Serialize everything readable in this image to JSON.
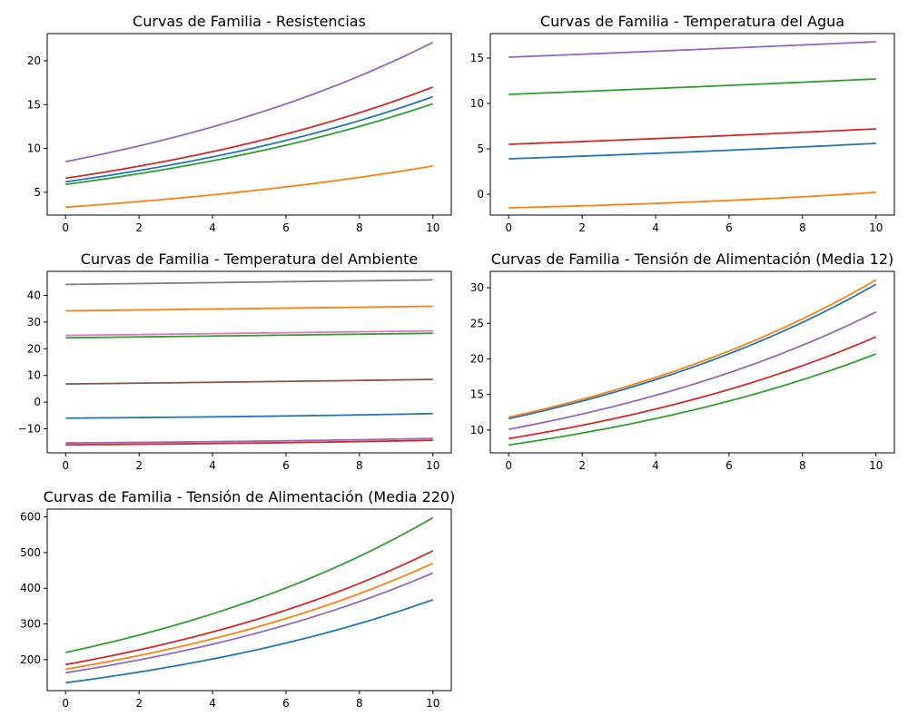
{
  "figure": {
    "background": "#ffffff"
  },
  "chart_data": [
    {
      "type": "line",
      "title": "Curvas de Familia - Resistencias",
      "xlabel": "",
      "ylabel": "",
      "xlim": [
        -0.5,
        10.5
      ],
      "ylim": [
        2.4,
        23.1
      ],
      "xticks": [
        0,
        2,
        4,
        6,
        8,
        10
      ],
      "yticks": [
        5,
        10,
        15,
        20
      ],
      "grid": false,
      "legend": "none",
      "series": [
        {
          "color": "#1f77b4",
          "y0": 6.2,
          "y10": 15.9,
          "curve": "exp"
        },
        {
          "color": "#ff7f0e",
          "y0": 3.3,
          "y10": 8.0,
          "curve": "exp"
        },
        {
          "color": "#2ca02c",
          "y0": 5.9,
          "y10": 15.1,
          "curve": "exp"
        },
        {
          "color": "#d62728",
          "y0": 6.6,
          "y10": 17.0,
          "curve": "exp"
        },
        {
          "color": "#9467bd",
          "y0": 8.5,
          "y10": 22.1,
          "curve": "exp"
        }
      ]
    },
    {
      "type": "line",
      "title": "Curvas de Familia - Temperatura del Agua",
      "xlabel": "",
      "ylabel": "",
      "xlim": [
        -0.5,
        10.5
      ],
      "ylim": [
        -2.3,
        17.7
      ],
      "xticks": [
        0,
        2,
        4,
        6,
        8,
        10
      ],
      "yticks": [
        0,
        5,
        10,
        15
      ],
      "grid": false,
      "legend": "none",
      "series": [
        {
          "color": "#1f77b4",
          "y0": 3.9,
          "y10": 5.6,
          "curve": "exp"
        },
        {
          "color": "#ff7f0e",
          "y0": -1.5,
          "y10": 0.2,
          "curve": "exp"
        },
        {
          "color": "#2ca02c",
          "y0": 11.0,
          "y10": 12.7,
          "curve": "exp"
        },
        {
          "color": "#d62728",
          "y0": 5.5,
          "y10": 7.2,
          "curve": "exp"
        },
        {
          "color": "#9467bd",
          "y0": 15.1,
          "y10": 16.8,
          "curve": "exp"
        }
      ]
    },
    {
      "type": "line",
      "title": "Curvas de Familia - Temperatura del Ambiente",
      "xlabel": "",
      "ylabel": "",
      "xlim": [
        -0.5,
        10.5
      ],
      "ylim": [
        -19,
        49
      ],
      "xticks": [
        0,
        2,
        4,
        6,
        8,
        10
      ],
      "yticks": [
        -10,
        0,
        10,
        20,
        30,
        40
      ],
      "grid": false,
      "legend": "none",
      "series": [
        {
          "color": "#1f77b4",
          "y0": -6.0,
          "y10": -4.3,
          "curve": "exp"
        },
        {
          "color": "#ff7f0e",
          "y0": 34.2,
          "y10": 35.9,
          "curve": "exp"
        },
        {
          "color": "#2ca02c",
          "y0": 24.1,
          "y10": 25.8,
          "curve": "exp"
        },
        {
          "color": "#d62728",
          "y0": -16.0,
          "y10": -14.3,
          "curve": "exp"
        },
        {
          "color": "#9467bd",
          "y0": -15.3,
          "y10": -13.6,
          "curve": "exp"
        },
        {
          "color": "#8c564b",
          "y0": 6.8,
          "y10": 8.5,
          "curve": "exp"
        },
        {
          "color": "#e377c2",
          "y0": 25.0,
          "y10": 26.7,
          "curve": "exp"
        },
        {
          "color": "#7f7f7f",
          "y0": 44.1,
          "y10": 45.8,
          "curve": "exp"
        }
      ]
    },
    {
      "type": "line",
      "title": "Curvas de Familia - Tensión de Alimentación (Media 12)",
      "xlabel": "",
      "ylabel": "",
      "xlim": [
        -0.5,
        10.5
      ],
      "ylim": [
        6.8,
        32.3
      ],
      "xticks": [
        0,
        2,
        4,
        6,
        8,
        10
      ],
      "yticks": [
        10,
        15,
        20,
        25,
        30
      ],
      "grid": false,
      "legend": "none",
      "series": [
        {
          "color": "#1f77b4",
          "y0": 11.6,
          "y10": 30.5,
          "curve": "exp"
        },
        {
          "color": "#ff7f0e",
          "y0": 11.8,
          "y10": 31.1,
          "curve": "exp"
        },
        {
          "color": "#2ca02c",
          "y0": 7.9,
          "y10": 20.7,
          "curve": "exp"
        },
        {
          "color": "#d62728",
          "y0": 8.8,
          "y10": 23.1,
          "curve": "exp"
        },
        {
          "color": "#9467bd",
          "y0": 10.1,
          "y10": 26.6,
          "curve": "exp"
        }
      ]
    },
    {
      "type": "line",
      "title": "Curvas de Familia - Tensión de Alimentación (Media 220)",
      "xlabel": "",
      "ylabel": "",
      "xlim": [
        -0.5,
        10.5
      ],
      "ylim": [
        113,
        622
      ],
      "xticks": [
        0,
        2,
        4,
        6,
        8,
        10
      ],
      "yticks": [
        200,
        300,
        400,
        500,
        600
      ],
      "grid": false,
      "legend": "none",
      "series": [
        {
          "color": "#1f77b4",
          "y0": 135,
          "y10": 368,
          "curve": "exp"
        },
        {
          "color": "#ff7f0e",
          "y0": 173,
          "y10": 470,
          "curve": "exp"
        },
        {
          "color": "#2ca02c",
          "y0": 220,
          "y10": 598,
          "curve": "exp"
        },
        {
          "color": "#d62728",
          "y0": 186,
          "y10": 505,
          "curve": "exp"
        },
        {
          "color": "#9467bd",
          "y0": 163,
          "y10": 443,
          "curve": "exp"
        }
      ]
    }
  ]
}
